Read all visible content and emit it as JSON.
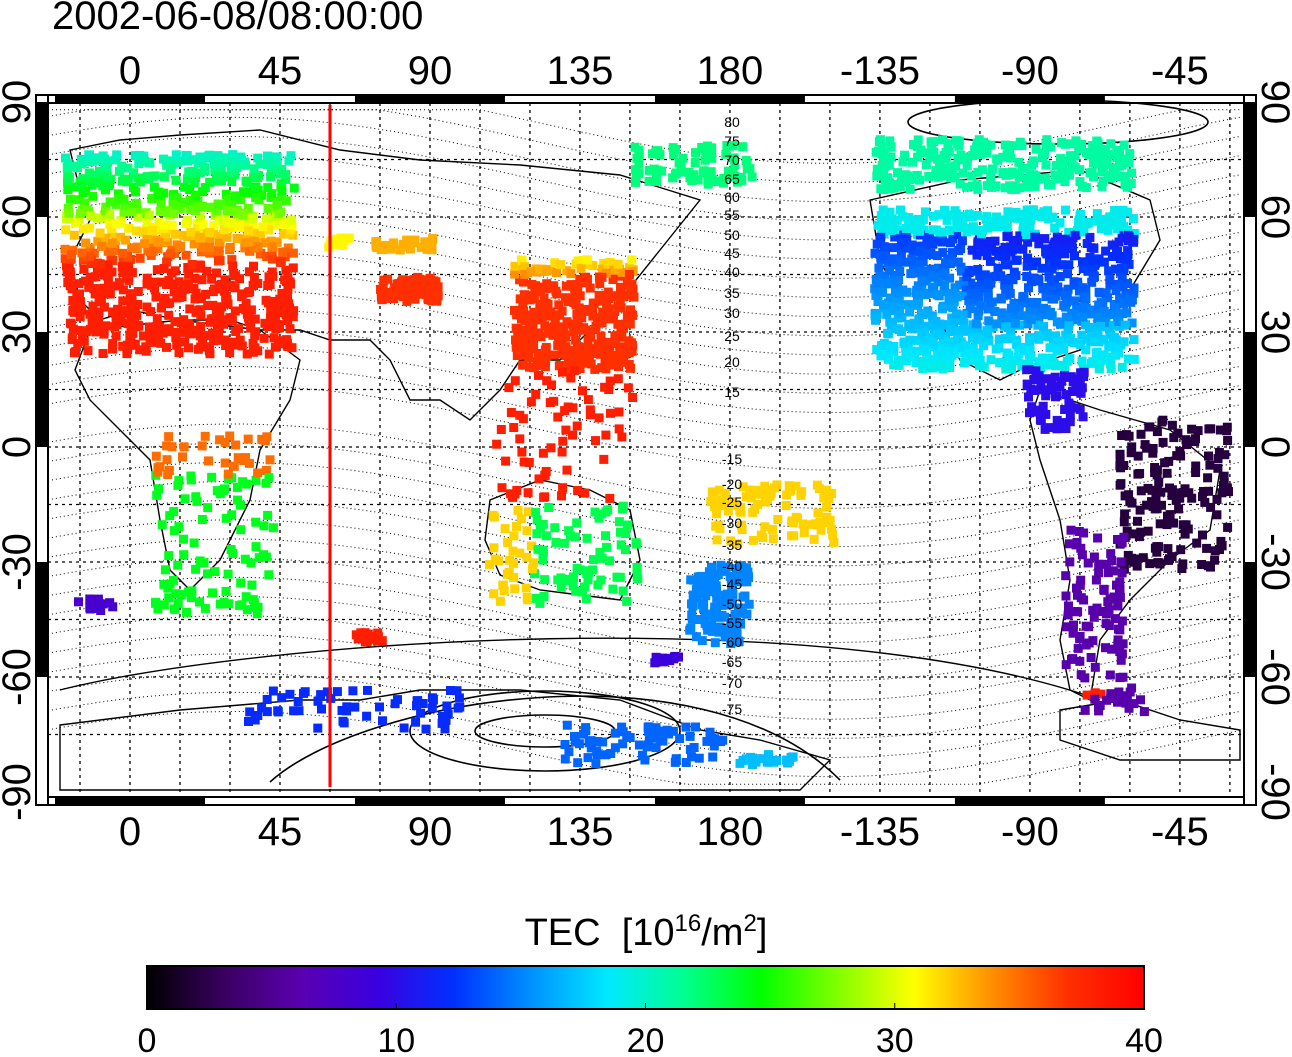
{
  "title": "2002-06-08/08:00:00",
  "map": {
    "lon_ticks_top": [
      "0",
      "45",
      "90",
      "135",
      "180",
      "-135",
      "-90",
      "-45"
    ],
    "lon_ticks_bottom": [
      "0",
      "45",
      "90",
      "135",
      "180",
      "-135",
      "-90",
      "-45"
    ],
    "lat_ticks_left": [
      "90",
      "60",
      "30",
      "0",
      "-30",
      "-60",
      "-90"
    ],
    "lat_ticks_right": [
      "90",
      "60",
      "30",
      "0",
      "-30",
      "-60",
      "-90"
    ],
    "lon_range": [
      -25,
      335
    ],
    "lat_range": [
      -90,
      90
    ],
    "marker_longitude": 60,
    "marker_color": "#ff0000",
    "contour_labels": [
      "80",
      "75",
      "70",
      "65",
      "60",
      "55",
      "50",
      "45",
      "40",
      "35",
      "30",
      "25",
      "20",
      "15",
      "-15",
      "-20",
      "-25",
      "-30",
      "-35",
      "-40",
      "-45",
      "-50",
      "-55",
      "-60",
      "-65",
      "-70",
      "-75"
    ]
  },
  "colorbar": {
    "title_main": "TEC",
    "title_unit_open": "[10",
    "title_unit_exp": "16",
    "title_unit_mid": "/m",
    "title_unit_exp2": "2",
    "title_unit_close": "]",
    "tick_labels": [
      "0",
      "10",
      "20",
      "30",
      "40"
    ],
    "min": 0,
    "max": 40,
    "colors": [
      "#000000",
      "#3a0060",
      "#5a00b0",
      "#3a00e0",
      "#0030ff",
      "#0090ff",
      "#00e8ff",
      "#00ff90",
      "#00ff00",
      "#80ff00",
      "#ffff00",
      "#ff9000",
      "#ff3000",
      "#ff0000"
    ]
  }
}
